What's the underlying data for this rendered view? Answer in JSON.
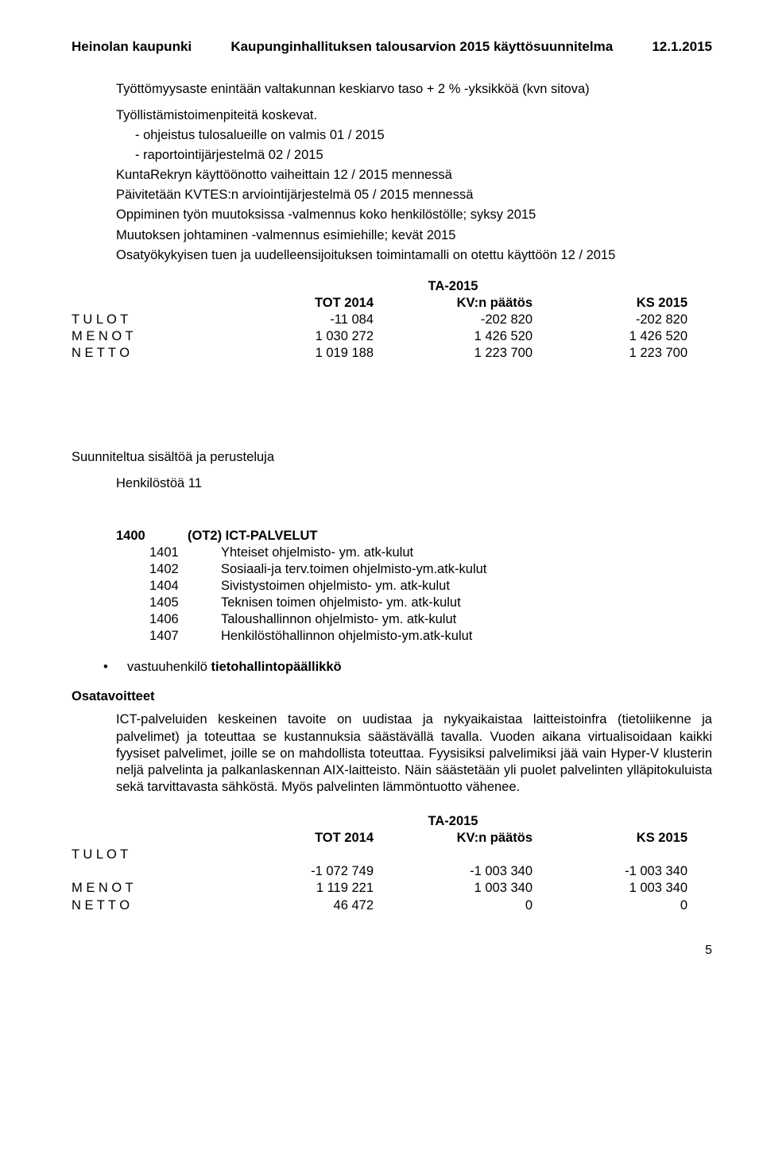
{
  "header": {
    "left": "Heinolan kaupunki",
    "mid": "Kaupunginhallituksen talousarvion 2015 käyttösuunnitelma",
    "right": "12.1.2015"
  },
  "block1": {
    "l1": "Työttömyysaste enintään valtakunnan keskiarvo taso + 2 % -yksikköä (kvn sitova)",
    "l2": "Työllistämistoimenpiteitä koskevat."
  },
  "list1": {
    "i1": "- ohjeistus tulosalueille on valmis 01 / 2015",
    "i2": "- raportointijärjestelmä 02 / 2015",
    "i3": "KuntaRekryn käyttöönotto vaiheittain 12 / 2015 mennessä",
    "i4": "Päivitetään KVTES:n arviointijärjestelmä 05 / 2015 mennessä",
    "i5": "Oppiminen työn muutoksissa -valmennus koko henkilöstölle; syksy 2015",
    "i6": "Muutoksen johtaminen -valmennus esimiehille; kevät 2015",
    "i7": "Osatyökykyisen tuen ja uudelleensijoituksen toimintamalli on otettu käyttöön 12 / 2015"
  },
  "table1": {
    "header_center": "TA-2015",
    "h_tot": "TOT 2014",
    "h_kv": "KV:n päätös",
    "h_ks": "KS 2015",
    "row_labels": {
      "tulot": "T U L O T",
      "menot": "M E N O T",
      "netto": "N E T T O"
    },
    "tulot": {
      "c1": "-11 084",
      "c2": "-202 820",
      "c3": "-202 820"
    },
    "menot": {
      "c1": "1 030 272",
      "c2": "1 426 520",
      "c3": "1 426 520"
    },
    "netto": {
      "c1": "1 019 188",
      "c2": "1 223 700",
      "c3": "1 223 700"
    }
  },
  "mid": {
    "suun": "Suunniteltua sisältöä ja perusteluja",
    "henk": "Henkilöstöä  11"
  },
  "def": {
    "top_code": "1400",
    "top_label": "(OT2) ICT-PALVELUT",
    "rows": [
      {
        "code": "1401",
        "label": "Yhteiset ohjelmisto- ym. atk-kulut"
      },
      {
        "code": "1402",
        "label": "Sosiaali-ja terv.toimen ohjelmisto-ym.atk-kulut"
      },
      {
        "code": "1404",
        "label": "Sivistystoimen ohjelmisto- ym. atk-kulut"
      },
      {
        "code": "1405",
        "label": "Teknisen toimen ohjelmisto- ym. atk-kulut"
      },
      {
        "code": "1406",
        "label": "Taloushallinnon ohjelmisto- ym. atk-kulut"
      },
      {
        "code": "1407",
        "label": "Henkilöstöhallinnon ohjelmisto-ym.atk-kulut"
      }
    ]
  },
  "bullet": {
    "pre": "vastuuhenkilö ",
    "bold": "tietohallintopäällikkö"
  },
  "osatav": "Osatavoitteet",
  "body2": "ICT-palveluiden keskeinen tavoite on uudistaa ja nykyaikaistaa laitteistoinfra (tietoliikenne ja palvelimet) ja toteuttaa se kustannuksia säästävällä tavalla. Vuoden aikana virtualisoidaan kaikki fyysiset palvelimet, joille se on mahdollista toteuttaa. Fyysisiksi palvelimiksi jää vain Hyper-V klusterin neljä palvelinta ja palkanlaskennan AIX-laitteisto. Näin säästetään yli puolet palvelinten ylläpitokuluista sekä tarvittavasta sähköstä. Myös palvelinten lämmöntuotto vähenee.",
  "table2": {
    "header_center": "TA-2015",
    "h_tot": "TOT 2014",
    "h_kv": "KV:n päätös",
    "h_ks": "KS 2015",
    "row_labels": {
      "tulot": "T U L O T",
      "menot": "M E N O T",
      "netto": "N E T T O"
    },
    "tulot": {
      "c1": "-1 072 749",
      "c2": "-1 003 340",
      "c3": "-1 003 340"
    },
    "menot": {
      "c1": "1 119 221",
      "c2": "1 003 340",
      "c3": "1 003 340"
    },
    "netto": {
      "c1": "46 472",
      "c2": "0",
      "c3": "0"
    }
  },
  "page_num": "5"
}
